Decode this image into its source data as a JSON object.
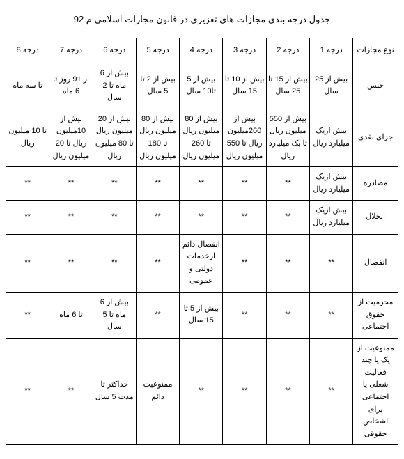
{
  "title": "جدول درجه بندی مجازات های تعزیری در قانون مجازات اسلامی م 92",
  "columns": [
    "نوع مجازات",
    "درجه 1",
    "درجه 2",
    "درجه 3",
    "درجه 4",
    "درجه 5",
    "درجه 6",
    "درجه 7",
    "درجه 8"
  ],
  "rows": [
    {
      "type": "حبس",
      "cells": [
        "بیش از 25 سال",
        "بیش از 15 تا 25 سال",
        "بیش از 10 تا 15 سال",
        "بیش از 5 تا10 سال",
        "بیش از 2 تا 5 سال",
        "بیش از 6 ماه تا 2 سال",
        "از 91 روز تا 6 ماه",
        "تا سه ماه"
      ]
    },
    {
      "type": "جزای نقدی",
      "cells": [
        "بیش ازیک میلیارد ریال",
        "بیش از 550 میلیون ریال تا یک میلیارد ریال",
        "بیش از 260میلیون ریال تا 550 میلیون ریال",
        "بیش از 80 میلیون ریال تا 260 میلیون ریال",
        "بیش از 80  میلیون ریال تا 180 میلیون ریال",
        "بیش از 20 میلیون ریال تا 80 میلیون ریال",
        "بیش از 10میلیون ریال تا 20 میلیون ریال",
        "تا 10 میلیون ریال"
      ]
    },
    {
      "type": "مصادره",
      "cells": [
        "بیش ازیک میلیارد ریال",
        "**",
        "**",
        "**",
        "**",
        "**",
        "**",
        "**"
      ]
    },
    {
      "type": "انحلال",
      "cells": [
        "بیش ازیک میلیارد ریال",
        "**",
        "**",
        "**",
        "**",
        "**",
        "**",
        "**"
      ]
    },
    {
      "type": "انفصال",
      "cells": [
        "**",
        "**",
        "**",
        "انفصال دائم ازخدمات دولتی و عمومی",
        "**",
        "**",
        "**",
        "**"
      ]
    },
    {
      "type": "محرمیت از حقوق اجتماعی",
      "cells": [
        "**",
        "**",
        "**",
        "بیش از 5 تا 15 سال",
        "**",
        "بیش از 6 ماه تا 5 سال",
        "تا 6 ماه",
        "**"
      ]
    },
    {
      "type": "ممنوعیت از یک یا چند فعالیت شغلی یا اجتماعی برای اشخاص حقوقی",
      "cells": [
        "**",
        "**",
        "**",
        "**",
        "ممنوعیت دائم",
        "حداکثر تا مدت 5 سال",
        "**",
        "**"
      ]
    }
  ],
  "style": {
    "background_color": "#ffffff",
    "border_color": "#000000",
    "text_color": "#000000",
    "title_fontsize": 13,
    "cell_fontsize": 11,
    "font_family": "Tahoma"
  }
}
